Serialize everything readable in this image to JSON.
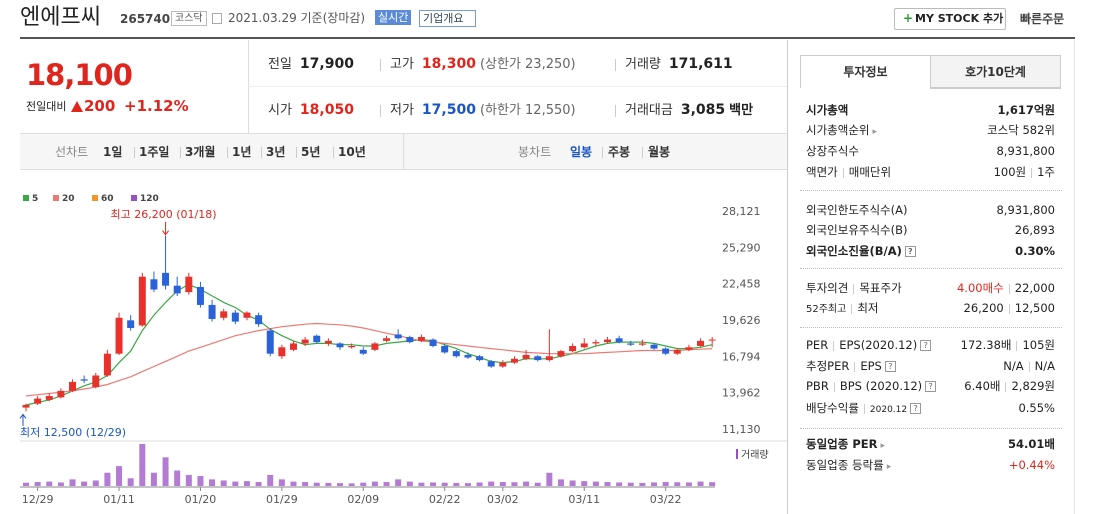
{
  "header": {
    "name": "엔에프씨",
    "code": "265740",
    "market": "코스닥",
    "date": "2021.03.29 기준(장마감)",
    "realtime": "실시간",
    "overview": "기업개요",
    "mystock": "MY STOCK 추가",
    "quick_order": "빠른주문"
  },
  "quote": {
    "price": "18,100",
    "change_label": "전일대비",
    "change": "200",
    "change_pct": "+1.12%"
  },
  "summary": [
    [
      {
        "label": "전일",
        "value": "17,900"
      },
      {
        "label": "고가",
        "value": "18,300",
        "color": "#e0251d",
        "extra": "(상한가 23,250)"
      },
      {
        "label": "거래량",
        "value": "171,611"
      }
    ],
    [
      {
        "label": "시가",
        "value": "18,050",
        "color": "#e0251d"
      },
      {
        "label": "저가",
        "value": "17,500",
        "color": "#1a55c9",
        "extra": "(하한가 12,550)"
      },
      {
        "label": "거래대금",
        "value": "3,085",
        "extra": "백만"
      }
    ]
  ],
  "tabs": {
    "line": [
      "선차트",
      "1일",
      "1주일",
      "3개월",
      "1년",
      "3년",
      "5년",
      "10년"
    ],
    "candle": [
      "봉차트",
      "일봉",
      "주봉",
      "월봉"
    ]
  },
  "chart_data": {
    "type": "candlestick",
    "categories": [
      null,
      "12/29",
      null,
      null,
      null,
      null,
      null,
      null,
      "01/11",
      null,
      null,
      null,
      null,
      null,
      null,
      "01/20",
      null,
      null,
      null,
      null,
      null,
      null,
      "01/29",
      null,
      null,
      null,
      null,
      null,
      null,
      "02/09",
      null,
      null,
      null,
      null,
      null,
      null,
      "02/22",
      null,
      null,
      null,
      null,
      "03/02",
      null,
      null,
      null,
      null,
      null,
      null,
      "03/11",
      null,
      null,
      null,
      null,
      null,
      null,
      "03/22",
      null,
      null,
      null,
      null
    ],
    "open": [
      12800,
      13100,
      13400,
      13600,
      14100,
      15000,
      14400,
      15300,
      17000,
      19600,
      19200,
      22800,
      23300,
      22300,
      21800,
      22200,
      20800,
      19800,
      20200,
      19800,
      20000,
      18800,
      16800,
      17300,
      17800,
      18400,
      17800,
      17800,
      17500,
      17300,
      17300,
      18000,
      18500,
      18300,
      18000,
      18100,
      17600,
      17200,
      16900,
      16800,
      16400,
      16000,
      16300,
      16600,
      16800,
      16500,
      16800,
      17200,
      17500,
      17800,
      17900,
      18200,
      17800,
      17700,
      17700,
      17400,
      17000,
      17300,
      17600,
      18050
    ],
    "high": [
      13100,
      13700,
      13900,
      14300,
      15000,
      15300,
      15500,
      17300,
      20200,
      20000,
      23300,
      23400,
      26200,
      23000,
      23300,
      22600,
      21200,
      20500,
      20400,
      20300,
      20200,
      19000,
      17700,
      18000,
      18300,
      18500,
      18200,
      17900,
      17800,
      17500,
      17900,
      18400,
      18900,
      18400,
      18500,
      18200,
      17700,
      17300,
      17100,
      16900,
      16500,
      16500,
      16800,
      17300,
      16900,
      18900,
      17300,
      17800,
      18200,
      18100,
      18300,
      18400,
      18000,
      18100,
      17800,
      17500,
      17400,
      17700,
      18200,
      18300
    ],
    "low": [
      12500,
      13000,
      13300,
      13500,
      14000,
      14700,
      14300,
      15200,
      16900,
      18800,
      19100,
      21800,
      22000,
      21500,
      21600,
      20600,
      19500,
      19600,
      19300,
      19600,
      19100,
      16800,
      16600,
      17200,
      17600,
      17800,
      17600,
      17300,
      17400,
      16900,
      17200,
      17900,
      18100,
      17800,
      17900,
      17500,
      17000,
      16700,
      16600,
      16400,
      15900,
      15900,
      16200,
      16500,
      16400,
      16400,
      16700,
      17100,
      17400,
      17600,
      17800,
      17800,
      17600,
      17600,
      17300,
      16900,
      16900,
      17200,
      17500,
      17500
    ],
    "close": [
      13000,
      13500,
      13700,
      14100,
      14800,
      14900,
      15300,
      17000,
      19800,
      19000,
      23000,
      22000,
      22300,
      21700,
      23000,
      20800,
      19700,
      20300,
      19500,
      20200,
      19300,
      17000,
      17500,
      17800,
      18100,
      17900,
      18000,
      17500,
      17600,
      17000,
      17800,
      18200,
      18200,
      17900,
      18300,
      17600,
      17100,
      16800,
      16700,
      16500,
      16000,
      16300,
      16600,
      16900,
      16500,
      16800,
      17200,
      17600,
      17800,
      17900,
      18100,
      17900,
      17700,
      17800,
      17400,
      17000,
      17300,
      17500,
      18000,
      18100
    ],
    "up_color": "#e8312c",
    "down_color": "#2a62d8",
    "series": [
      {
        "name": "5",
        "color": "#3aa845",
        "values": [
          13000,
          13200,
          13400,
          13700,
          14100,
          14500,
          14800,
          15300,
          16300,
          17200,
          18800,
          20000,
          21000,
          21900,
          22400,
          22000,
          21500,
          21000,
          20600,
          20000,
          19600,
          18900,
          18400,
          18000,
          17700,
          17800,
          17800,
          17700,
          17700,
          17600,
          17600,
          17800,
          17900,
          18000,
          18100,
          18000,
          17700,
          17400,
          17000,
          16700,
          16400,
          16300,
          16400,
          16600,
          16600,
          16600,
          16800,
          17000,
          17300,
          17600,
          17800,
          17900,
          17900,
          17900,
          17800,
          17600,
          17400,
          17400,
          17500,
          17700
        ]
      },
      {
        "name": "20",
        "color": "#ec7a74",
        "values": [
          13700,
          13800,
          13900,
          14000,
          14100,
          14250,
          14400,
          14600,
          14900,
          15200,
          15600,
          16000,
          16400,
          16800,
          17200,
          17500,
          17800,
          18100,
          18400,
          18600,
          18800,
          18950,
          19100,
          19200,
          19300,
          19350,
          19300,
          19250,
          19150,
          19000,
          18800,
          18600,
          18400,
          18200,
          18000,
          17900,
          17800,
          17700,
          17600,
          17500,
          17400,
          17300,
          17200,
          17100,
          17050,
          17000,
          17000,
          17000,
          17000,
          17050,
          17100,
          17150,
          17200,
          17250,
          17250,
          17250,
          17250,
          17300,
          17350,
          17400
        ]
      },
      {
        "name": "60",
        "color": "#f0962a"
      },
      {
        "name": "120",
        "color": "#9b4fc6"
      }
    ],
    "volume": [
      150000,
      180000,
      200000,
      160000,
      300000,
      200000,
      250000,
      600000,
      900000,
      350000,
      1900000,
      600000,
      1300000,
      700000,
      500000,
      450000,
      300000,
      250000,
      200000,
      220000,
      180000,
      500000,
      300000,
      200000,
      180000,
      150000,
      140000,
      130000,
      120000,
      150000,
      200000,
      180000,
      300000,
      200000,
      150000,
      160000,
      150000,
      140000,
      130000,
      160000,
      200000,
      180000,
      170000,
      200000,
      150000,
      600000,
      300000,
      250000,
      220000,
      200000,
      180000,
      160000,
      150000,
      140000,
      160000,
      180000,
      170000,
      160000,
      200000,
      171611
    ],
    "volume_color": "#9b4fc6",
    "volume_label": "거래량",
    "ylim": [
      11130,
      28121
    ],
    "yticks": [
      {
        "value": 28121,
        "label": "28,121"
      },
      {
        "value": 25290,
        "label": "25,290"
      },
      {
        "value": 22458,
        "label": "22,458"
      },
      {
        "value": 19626,
        "label": "19,626"
      },
      {
        "value": 16794,
        "label": "16,794"
      },
      {
        "value": 13962,
        "label": "13,962"
      },
      {
        "value": 11130,
        "label": "11,130"
      }
    ],
    "annotations": {
      "high": "최고 26,200 (01/18)",
      "low": "최저 12,500 (12/29)"
    }
  },
  "info": {
    "tabs": [
      "투자정보",
      "호가10단계"
    ],
    "sections": [
      [
        {
          "labels": [
            "시가총액"
          ],
          "values": [
            "1,617억원"
          ]
        },
        {
          "labels": [
            "시가총액순위"
          ],
          "values": [
            "코스닥 582위"
          ]
        },
        {
          "labels": [
            "상장주식수"
          ],
          "values": [
            "8,931,800"
          ]
        },
        {
          "labels": [
            "액면가",
            "매매단위"
          ],
          "values": [
            "100원",
            "1주"
          ]
        }
      ],
      [
        {
          "labels": [
            "외국인한도주식수(A)"
          ],
          "values": [
            "8,931,800"
          ]
        },
        {
          "labels": [
            "외국인보유주식수(B)"
          ],
          "values": [
            "26,893"
          ]
        },
        {
          "labels": [
            "외국인소진율(B/A)"
          ],
          "values": [
            "0.30%"
          ]
        }
      ],
      [
        {
          "labels": [
            "투자의견",
            "목표주가"
          ],
          "values": [
            "4.00매수",
            "22,000"
          ]
        },
        {
          "labels": [
            "52주최고",
            "최저"
          ],
          "values": [
            "26,200",
            "12,500"
          ]
        }
      ],
      [
        {
          "labels": [
            "PER",
            "EPS(2020.12)"
          ],
          "values": [
            "172.38배",
            "105원"
          ]
        },
        {
          "labels": [
            "추정PER",
            "EPS"
          ],
          "values": [
            "N/A",
            "N/A"
          ]
        },
        {
          "labels": [
            "PBR",
            "BPS (2020.12)"
          ],
          "values": [
            "6.40배",
            "2,829원"
          ]
        },
        {
          "labels": [
            "배당수익률",
            "2020.12"
          ],
          "values": [
            "0.55%"
          ]
        }
      ],
      [
        {
          "labels": [
            "동일업종 PER"
          ],
          "values": [
            "54.01배"
          ]
        },
        {
          "labels": [
            "동일업종 등락률"
          ],
          "values": [
            "+0.44%"
          ]
        }
      ]
    ]
  }
}
